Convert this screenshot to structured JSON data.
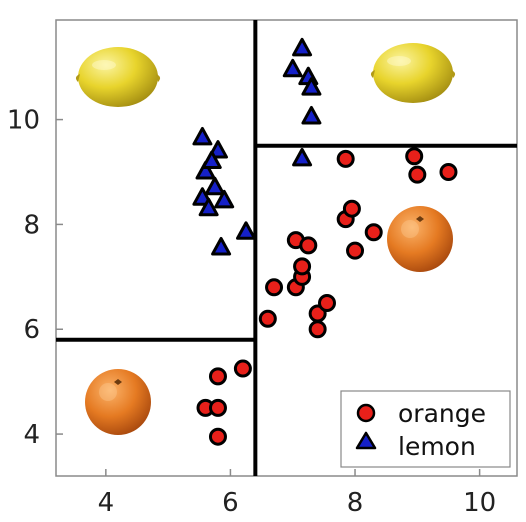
{
  "chart_data": {
    "type": "scatter",
    "title": "",
    "xlabel": "",
    "ylabel": "",
    "xlim": [
      3.2,
      10.6
    ],
    "ylim": [
      3.2,
      11.9
    ],
    "xticks": [
      4,
      6,
      8,
      10
    ],
    "yticks": [
      4,
      6,
      8,
      10
    ],
    "grid": false,
    "legend_position": "bottom-right",
    "series": [
      {
        "name": "orange",
        "marker": "circle",
        "color": "#e8201a",
        "edge": "#000000",
        "points": [
          [
            5.8,
            5.1
          ],
          [
            5.6,
            4.5
          ],
          [
            5.8,
            4.5
          ],
          [
            5.8,
            3.95
          ],
          [
            6.2,
            5.25
          ],
          [
            6.6,
            6.2
          ],
          [
            6.7,
            6.8
          ],
          [
            7.05,
            6.8
          ],
          [
            7.15,
            7.0
          ],
          [
            7.15,
            7.2
          ],
          [
            7.05,
            7.7
          ],
          [
            7.25,
            7.6
          ],
          [
            7.4,
            6.3
          ],
          [
            7.4,
            6.0
          ],
          [
            7.55,
            6.5
          ],
          [
            7.85,
            9.25
          ],
          [
            7.85,
            8.1
          ],
          [
            7.95,
            8.3
          ],
          [
            8.0,
            7.5
          ],
          [
            8.3,
            7.85
          ],
          [
            8.95,
            9.3
          ],
          [
            9.0,
            8.95
          ],
          [
            9.5,
            9.0
          ]
        ]
      },
      {
        "name": "lemon",
        "marker": "triangle",
        "color": "#1520c8",
        "edge": "#000000",
        "points": [
          [
            5.55,
            9.65
          ],
          [
            5.8,
            9.4
          ],
          [
            5.6,
            9.0
          ],
          [
            5.7,
            9.2
          ],
          [
            5.75,
            8.7
          ],
          [
            5.55,
            8.5
          ],
          [
            5.65,
            8.3
          ],
          [
            5.9,
            8.45
          ],
          [
            5.85,
            7.55
          ],
          [
            6.25,
            7.85
          ],
          [
            7.0,
            10.95
          ],
          [
            7.15,
            11.35
          ],
          [
            7.25,
            10.8
          ],
          [
            7.3,
            10.6
          ],
          [
            7.3,
            10.05
          ],
          [
            7.15,
            9.25
          ]
        ]
      }
    ],
    "decision_boundaries": [
      {
        "orientation": "vertical",
        "x": 6.4,
        "y_from": 3.2,
        "y_to": 11.9
      },
      {
        "orientation": "horizontal",
        "y": 5.8,
        "x_from": 3.2,
        "x_to": 6.4
      },
      {
        "orientation": "horizontal",
        "y": 9.5,
        "x_from": 6.4,
        "x_to": 10.6
      }
    ],
    "region_images": [
      {
        "fruit": "lemon",
        "region": "top-left"
      },
      {
        "fruit": "lemon",
        "region": "top-right"
      },
      {
        "fruit": "orange",
        "region": "right-middle"
      },
      {
        "fruit": "orange",
        "region": "bottom-left"
      }
    ]
  },
  "colors": {
    "orange_fill": "#e8201a",
    "lemon_fill": "#1520c8",
    "fruit_orange": "#e47a22",
    "fruit_lemon": "#e4cf2a",
    "axis": "#8a8a8a",
    "boundary": "#000000"
  }
}
